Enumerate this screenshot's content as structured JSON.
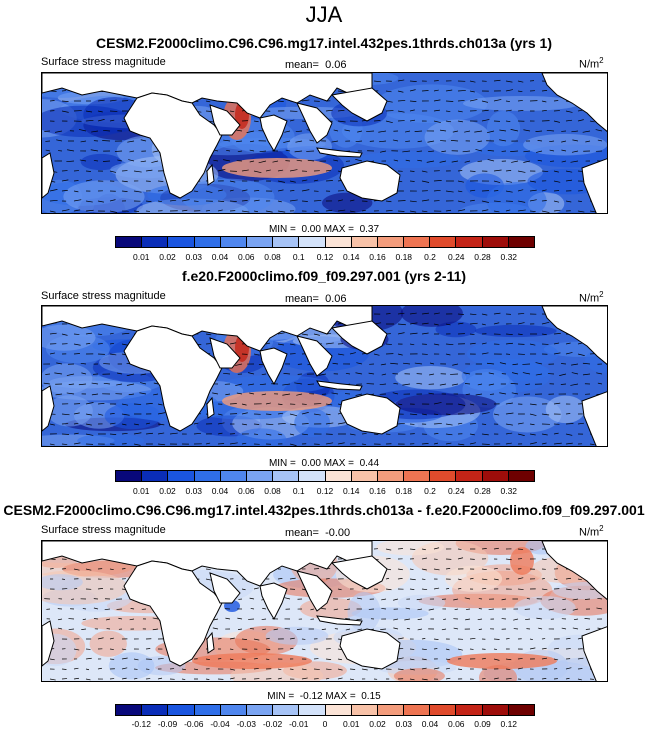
{
  "title": "JJA",
  "panels": [
    {
      "title": "CESM2.F2000climo.C96.C96.mg17.intel.432pes.1thrds.ch013a (yrs 1)",
      "left_label": "Surface stress magnitude",
      "mean_label": "mean=",
      "mean_value": "0.06",
      "unit": "N/m",
      "unit_sup": "2",
      "min_label": "MIN =",
      "min_value": "0.00",
      "max_label": "MAX =",
      "max_value": "0.37",
      "type": "absolute"
    },
    {
      "title": "f.e20.F2000climo.f09_f09.297.001 (yrs 2-11)",
      "left_label": "Surface stress magnitude",
      "mean_label": "mean=",
      "mean_value": "0.06",
      "unit": "N/m",
      "unit_sup": "2",
      "min_label": "MIN =",
      "min_value": "0.00",
      "max_label": "MAX =",
      "max_value": "0.44",
      "type": "absolute"
    },
    {
      "title": "CESM2.F2000climo.C96.C96.mg17.intel.432pes.1thrds.ch013a - f.e20.F2000climo.f09_f09.297.001",
      "left_label": "Surface stress magnitude",
      "mean_label": "mean=",
      "mean_value": "-0.00",
      "unit": "N/m",
      "unit_sup": "2",
      "min_label": "MIN =",
      "min_value": "-0.12",
      "max_label": "MAX =",
      "max_value": "0.15",
      "type": "difference"
    }
  ],
  "colorbars": {
    "absolute": {
      "ticks": [
        "0.01",
        "0.02",
        "0.03",
        "0.04",
        "0.06",
        "0.08",
        "0.1",
        "0.12",
        "0.14",
        "0.16",
        "0.18",
        "0.2",
        "0.24",
        "0.28",
        "0.32"
      ],
      "colors": [
        "#08087a",
        "#0a2db8",
        "#1a55e0",
        "#2f6ee8",
        "#4f86ee",
        "#7aa4f2",
        "#a6c3f6",
        "#d3e2fa",
        "#fbe3d6",
        "#f8c2a8",
        "#f39c7c",
        "#ee7452",
        "#e04b2c",
        "#c42417",
        "#9e0d0a",
        "#6e0000"
      ]
    },
    "difference": {
      "ticks": [
        "-0.12",
        "-0.09",
        "-0.06",
        "-0.04",
        "-0.03",
        "-0.02",
        "-0.01",
        "0",
        "0.01",
        "0.02",
        "0.03",
        "0.04",
        "0.06",
        "0.09",
        "0.12"
      ],
      "colors": [
        "#08087a",
        "#0a2db8",
        "#1a55e0",
        "#2f6ee8",
        "#4f86ee",
        "#7aa4f2",
        "#a6c3f6",
        "#d3e2fa",
        "#fbe3d6",
        "#f8c2a8",
        "#f39c7c",
        "#ee7452",
        "#e04b2c",
        "#c42417",
        "#9e0d0a",
        "#6e0000"
      ]
    }
  }
}
